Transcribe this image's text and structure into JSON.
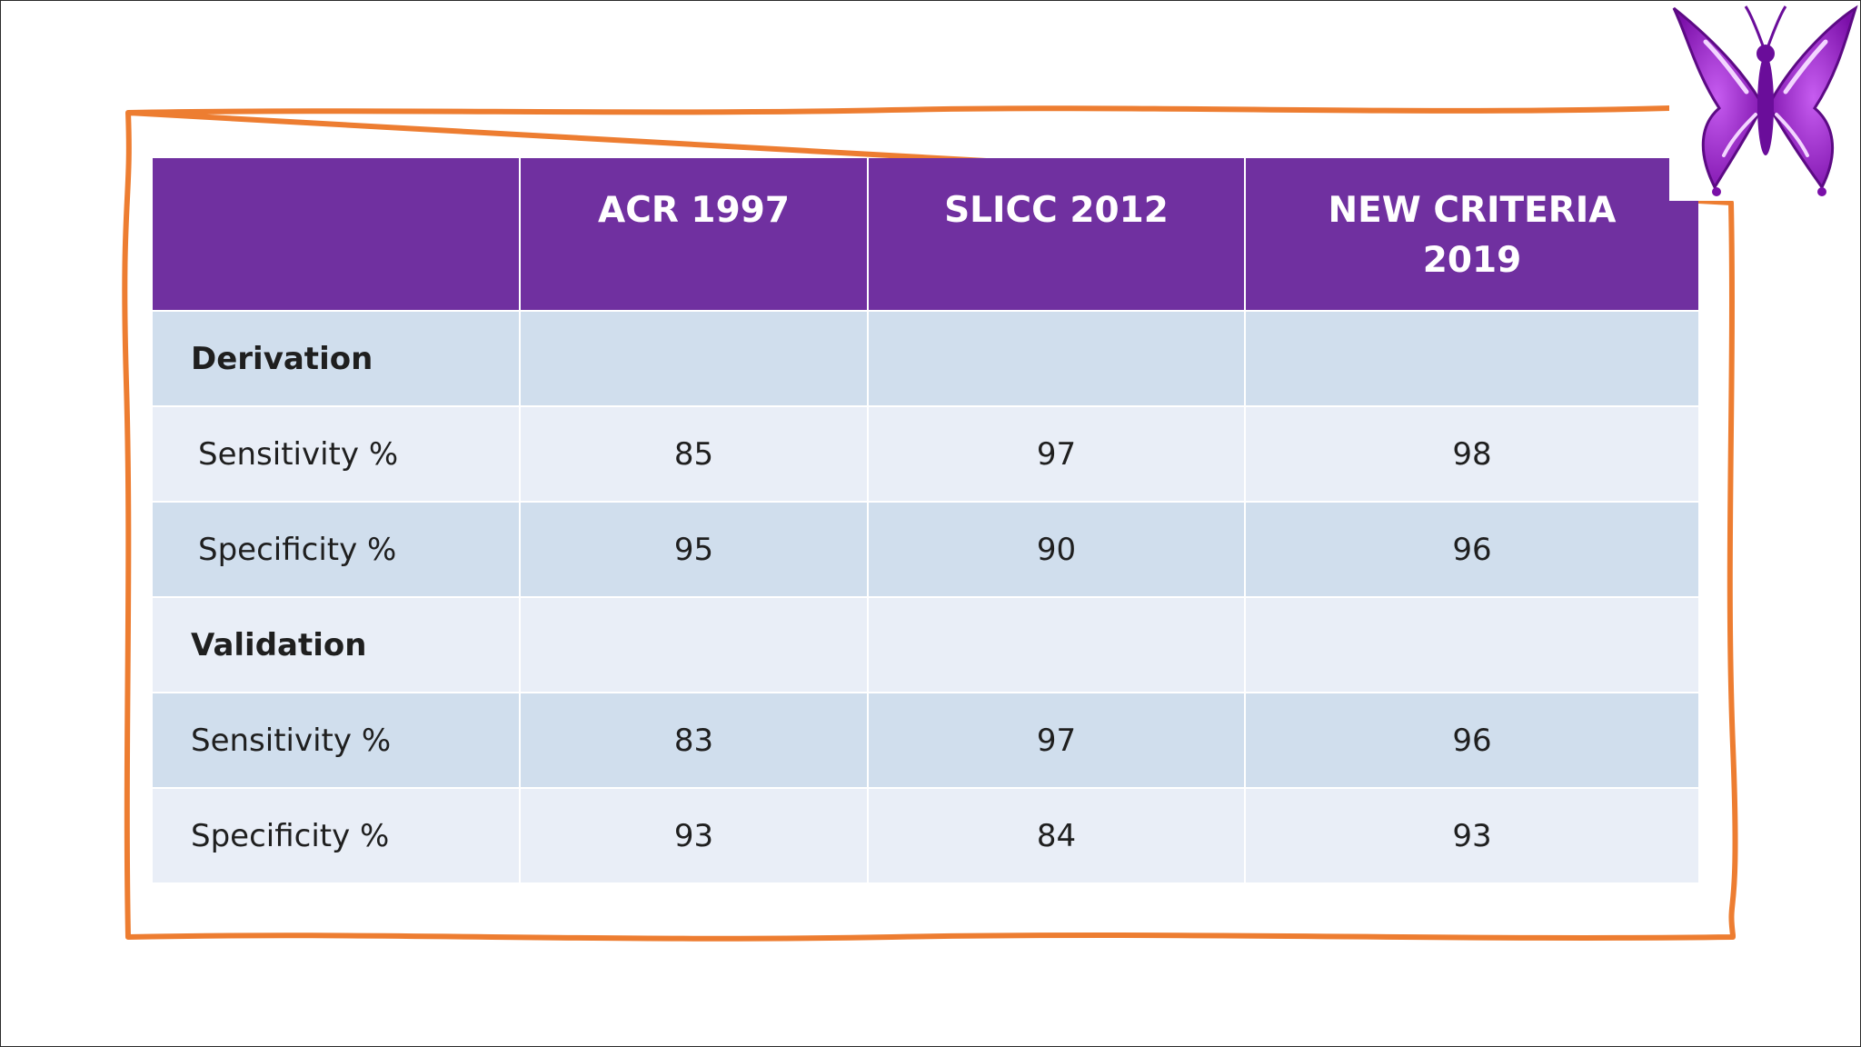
{
  "table": {
    "headers": [
      "",
      "ACR 1997",
      "SLICC 2012",
      "NEW CRITERIA\n2019"
    ],
    "rows": [
      [
        "Derivation",
        "",
        "",
        ""
      ],
      [
        "Sensitivity %",
        "85",
        "97",
        "98"
      ],
      [
        "Specificity %",
        "95",
        "90",
        "96"
      ],
      [
        "Validation",
        "",
        "",
        ""
      ],
      [
        "Sensitivity %",
        "83",
        "97",
        "96"
      ],
      [
        "Specificity %",
        "93",
        "84",
        "93"
      ]
    ]
  },
  "colors": {
    "header_fill": "#7030a0",
    "row_dark": "#d0deed",
    "row_light": "#e9eef7",
    "frame_stroke": "#ed7d31",
    "butterfly": "#9b1fc6"
  },
  "icons": {
    "decoration": "butterfly-icon"
  }
}
